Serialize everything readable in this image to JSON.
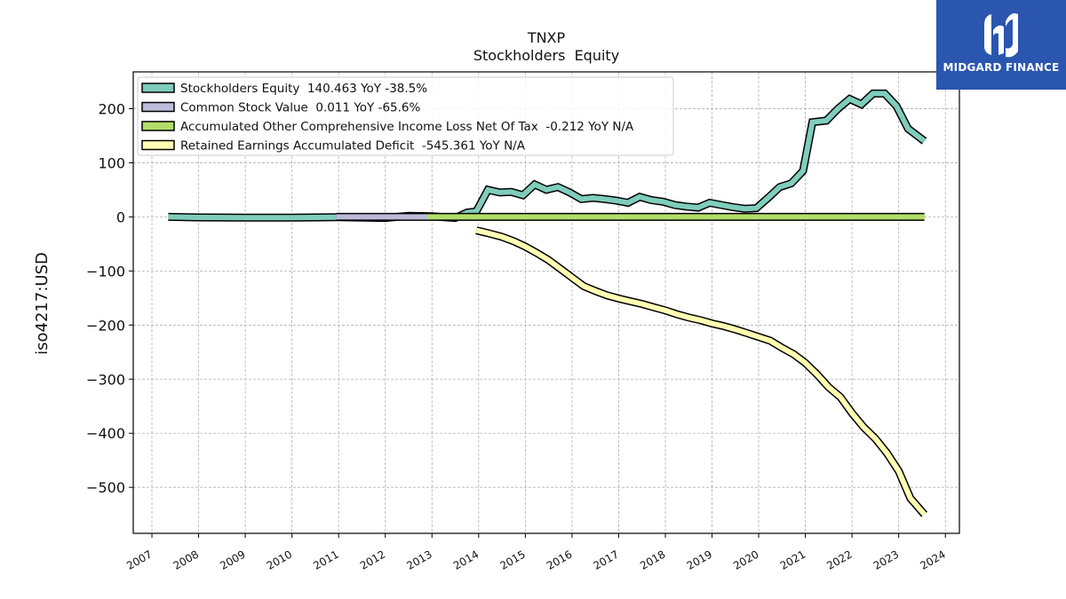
{
  "brand": {
    "name": "MIDGARD FINANCE",
    "color": "#2a56b0"
  },
  "chart_data": {
    "type": "line",
    "title": "TNXP",
    "subtitle": "Stockholders  Equity",
    "ylabel": "iso4217:USD",
    "xlabel": "",
    "xlim": [
      2006.6,
      2024.3
    ],
    "ylim": [
      -585,
      268
    ],
    "grid": true,
    "legend_position": "top-left",
    "x_ticks": [
      2007,
      2008,
      2009,
      2010,
      2011,
      2012,
      2013,
      2014,
      2015,
      2016,
      2017,
      2018,
      2019,
      2020,
      2021,
      2022,
      2023,
      2024
    ],
    "y_ticks": [
      200,
      100,
      0,
      -100,
      -200,
      -300,
      -400,
      -500
    ],
    "y_tick_labels": [
      "200",
      "100",
      "0",
      "−100",
      "−200",
      "−300",
      "−400",
      "−500"
    ],
    "series": [
      {
        "name": "Stockholders Equity",
        "legend": "Stockholders Equity  140.463 YoY -38.5%",
        "color": "#7fcdbb",
        "points": [
          [
            2007.35,
            0
          ],
          [
            2008.0,
            -1
          ],
          [
            2009.0,
            -1.5
          ],
          [
            2010.0,
            -1.5
          ],
          [
            2011.0,
            -0.5
          ],
          [
            2012.0,
            -2
          ],
          [
            2012.5,
            2
          ],
          [
            2013.0,
            1
          ],
          [
            2013.5,
            -2
          ],
          [
            2013.75,
            8
          ],
          [
            2013.95,
            10
          ],
          [
            2014.2,
            50
          ],
          [
            2014.45,
            45
          ],
          [
            2014.7,
            46
          ],
          [
            2014.95,
            40
          ],
          [
            2015.2,
            60
          ],
          [
            2015.45,
            50
          ],
          [
            2015.7,
            55
          ],
          [
            2015.95,
            45
          ],
          [
            2016.2,
            33
          ],
          [
            2016.45,
            35
          ],
          [
            2016.7,
            33
          ],
          [
            2016.95,
            30
          ],
          [
            2017.2,
            26
          ],
          [
            2017.45,
            37
          ],
          [
            2017.7,
            31
          ],
          [
            2017.95,
            28
          ],
          [
            2018.2,
            22
          ],
          [
            2018.45,
            19
          ],
          [
            2018.7,
            17
          ],
          [
            2018.95,
            26
          ],
          [
            2019.2,
            22
          ],
          [
            2019.45,
            18
          ],
          [
            2019.7,
            15
          ],
          [
            2019.95,
            16
          ],
          [
            2020.2,
            35
          ],
          [
            2020.45,
            55
          ],
          [
            2020.7,
            62
          ],
          [
            2020.95,
            85
          ],
          [
            2021.15,
            175
          ],
          [
            2021.45,
            178
          ],
          [
            2021.7,
            200
          ],
          [
            2021.95,
            218
          ],
          [
            2022.2,
            208
          ],
          [
            2022.45,
            228
          ],
          [
            2022.7,
            228
          ],
          [
            2022.95,
            205
          ],
          [
            2023.2,
            163
          ],
          [
            2023.55,
            140
          ]
        ]
      },
      {
        "name": "Common Stock Value",
        "legend": "Common Stock Value  0.011 YoY -65.6%",
        "color": "#bebada",
        "points": [
          [
            2010.95,
            0
          ],
          [
            2012.9,
            0
          ]
        ]
      },
      {
        "name": "Accumulated Other Comprehensive Income Loss Net Of Tax",
        "legend": "Accumulated Other Comprehensive Income Loss Net Of Tax  -0.212 YoY N/A",
        "color": "#b3de69",
        "points": [
          [
            2012.9,
            0
          ],
          [
            2023.55,
            0
          ]
        ]
      },
      {
        "name": "Retained Earnings Accumulated Deficit",
        "legend": "Retained Earnings Accumulated Deficit  -545.361 YoY N/A",
        "color": "#ffffb3",
        "points": [
          [
            2013.95,
            -25
          ],
          [
            2014.2,
            -30
          ],
          [
            2014.5,
            -37
          ],
          [
            2014.75,
            -45
          ],
          [
            2015.0,
            -55
          ],
          [
            2015.25,
            -67
          ],
          [
            2015.5,
            -80
          ],
          [
            2015.75,
            -96
          ],
          [
            2016.0,
            -112
          ],
          [
            2016.25,
            -128
          ],
          [
            2016.5,
            -137
          ],
          [
            2016.75,
            -145
          ],
          [
            2017.0,
            -151
          ],
          [
            2017.25,
            -156
          ],
          [
            2017.5,
            -161
          ],
          [
            2017.75,
            -167
          ],
          [
            2018.0,
            -173
          ],
          [
            2018.25,
            -180
          ],
          [
            2018.5,
            -186
          ],
          [
            2018.75,
            -191
          ],
          [
            2019.0,
            -197
          ],
          [
            2019.25,
            -202
          ],
          [
            2019.5,
            -208
          ],
          [
            2019.75,
            -215
          ],
          [
            2020.0,
            -222
          ],
          [
            2020.25,
            -229
          ],
          [
            2020.5,
            -242
          ],
          [
            2020.75,
            -254
          ],
          [
            2021.0,
            -270
          ],
          [
            2021.25,
            -291
          ],
          [
            2021.5,
            -315
          ],
          [
            2021.75,
            -333
          ],
          [
            2022.0,
            -363
          ],
          [
            2022.25,
            -389
          ],
          [
            2022.5,
            -410
          ],
          [
            2022.75,
            -437
          ],
          [
            2023.0,
            -470
          ],
          [
            2023.25,
            -520
          ],
          [
            2023.55,
            -550
          ]
        ]
      }
    ]
  }
}
